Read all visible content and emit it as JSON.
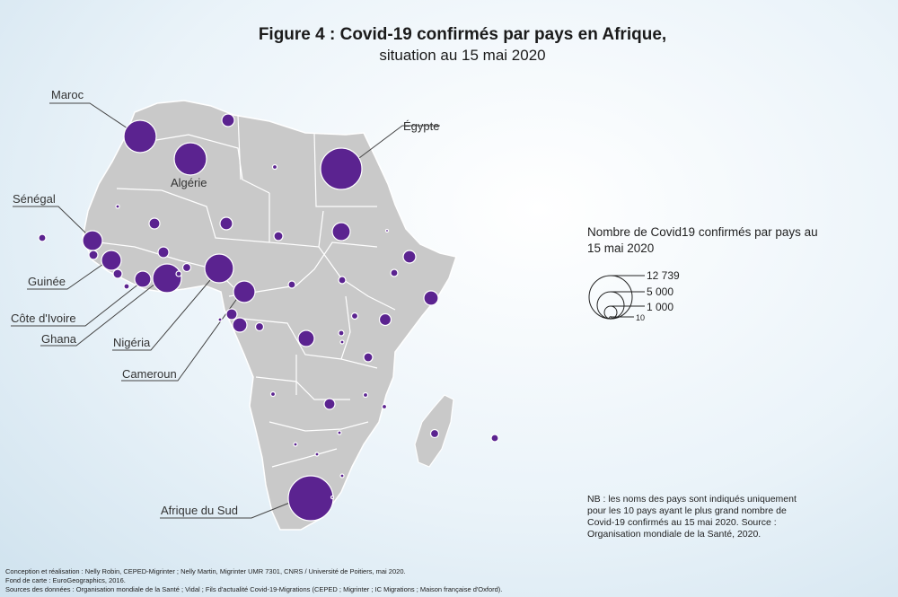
{
  "title": "Figure 4 : Covid-19 confirmés par pays en Afrique,",
  "subtitle": "situation au 15 mai 2020",
  "labels": {
    "maroc": "Maroc",
    "algerie": "Algérie",
    "egypte": "Égypte",
    "senegal": "Sénégal",
    "guinee": "Guinée",
    "cote_ivoire": "Côte d'Ivoire",
    "ghana": "Ghana",
    "nigeria": "Nigéria",
    "cameroun": "Cameroun",
    "afrique_du_sud": "Afrique du Sud"
  },
  "legend": {
    "title": "Nombre de Covid19 confirmés par pays au 15 mai 2020",
    "values": [
      "12 739",
      "5 000",
      "1 000",
      "10"
    ]
  },
  "note": "NB : les noms des pays sont indiqués uniquement pour les 10 pays ayant le plus grand nombre de Covid-19 confirmés au 15 mai 2020. Source : Organisation mondiale de la Santé, 2020.",
  "credits": {
    "line1": "Conception et réalisation : Nelly Robin, CEPED-Migrinter ; Nelly Martin, Migrinter UMR 7301, CNRS / Université de Poitiers, mai 2020.",
    "line2": "Fond de carte : EuroGeographics, 2016.",
    "line3": "Sources des données : Organisation mondiale de la Santé ; Vidal ; Fils d'actualité Covid-19-Migrations (CEPED ; Migrinter ; IC Migrations ; Maison française d'Oxford)."
  },
  "colors": {
    "bubble": "#5b2390",
    "land": "#c9c9c9",
    "border": "#ffffff"
  }
}
